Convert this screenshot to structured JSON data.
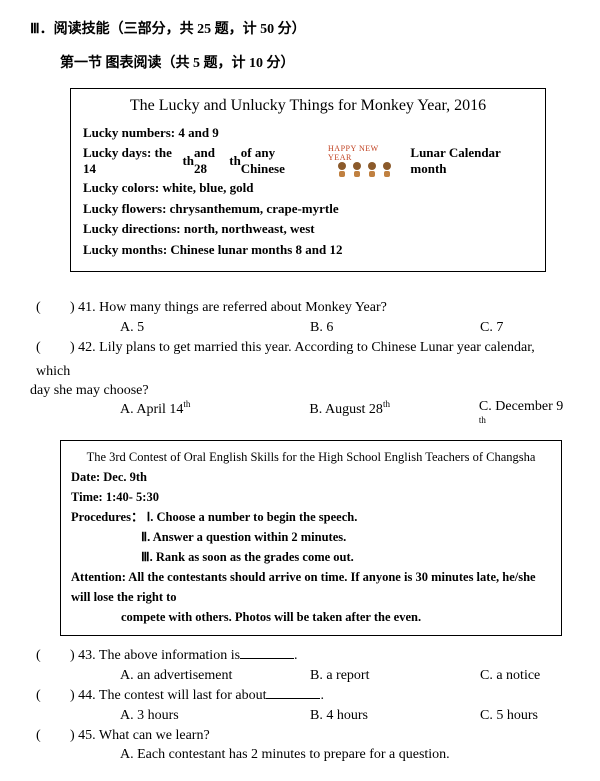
{
  "header": {
    "section": "Ⅲ．阅读技能（三部分，共 25 题，计 50 分）",
    "sub": "第一节 图表阅读（共 5 题，计 10 分）"
  },
  "box1": {
    "title": "The Lucky and Unlucky Things for Monkey Year, 2016",
    "l1": "Lucky numbers: 4 and 9",
    "l2a": "Lucky days: the 14",
    "l2b": " and 28",
    "l2c": " of any Chinese",
    "l2right": "Lunar Calendar month",
    "l3": "Lucky colors: white, blue, gold",
    "l4": "Lucky flowers: chrysanthemum, crape-myrtle",
    "l5": "Lucky directions: north, northweast, west",
    "l6": "Lucky months: Chinese lunar months 8 and 12",
    "hny": "HAPPY NEW YEAR"
  },
  "q41": {
    "text": ") 41. How many things are referred about Monkey Year?",
    "a": "A. 5",
    "b": "B. 6",
    "c": "C. 7"
  },
  "q42": {
    "text": ") 42. Lily plans to get married this year. According to Chinese Lunar year calendar, which",
    "text2": "day she may choose?",
    "a": "A. April 14",
    "b": "B. August 28",
    "c": "C. December 9"
  },
  "box2": {
    "title": "The 3rd Contest of Oral English Skills for the High School English Teachers of Changsha",
    "date": "Date: Dec. 9th",
    "time": "Time: 1:40- 5:30",
    "proc_label": "Procedures：",
    "p1": "Ⅰ. Choose a number to begin the speech.",
    "p2": "Ⅱ. Answer a question within 2 minutes.",
    "p3": "Ⅲ. Rank as soon as the grades come out.",
    "att": "Attention: All the contestants should arrive on time. If anyone is 30 minutes late, he/she will lose the right to",
    "att2": "compete with others. Photos will be taken after the even."
  },
  "q43": {
    "text": ") 43. The above information is",
    "a": "A. an advertisement",
    "b": "B. a report",
    "c": "C. a notice"
  },
  "q44": {
    "text": ") 44. The contest will last for about",
    "a": "A. 3 hours",
    "b": "B. 4 hours",
    "c": "C. 5 hours"
  },
  "q45": {
    "text": ") 45. What can we learn?",
    "a": "A. Each contestant has 2 minutes to prepare for a question."
  },
  "paren": "("
}
